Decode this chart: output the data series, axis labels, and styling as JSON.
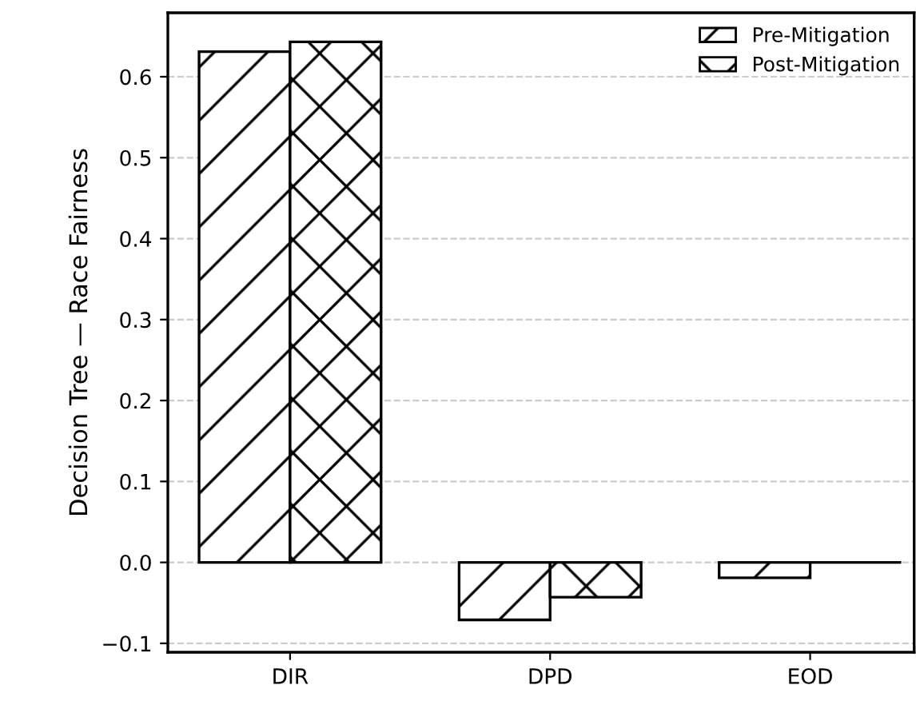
{
  "chart_data": {
    "type": "bar",
    "ylabel": "Decision Tree — Race Fairness",
    "categories": [
      "DIR",
      "DPD",
      "EOD"
    ],
    "series": [
      {
        "name": "Pre-Mitigation",
        "color": "#000000",
        "values": [
          0.631,
          -0.071,
          -0.019
        ]
      },
      {
        "name": "Post-Mitigation",
        "color": "#000000",
        "values": [
          0.643,
          -0.043,
          0.0
        ]
      }
    ],
    "ylim": [
      -0.111,
      0.679
    ],
    "yticks": [
      {
        "value": -0.1,
        "label": "−0.1"
      },
      {
        "value": 0.0,
        "label": "0.0"
      },
      {
        "value": 0.1,
        "label": "0.1"
      },
      {
        "value": 0.2,
        "label": "0.2"
      },
      {
        "value": 0.3,
        "label": "0.3"
      },
      {
        "value": 0.4,
        "label": "0.4"
      },
      {
        "value": 0.5,
        "label": "0.5"
      },
      {
        "value": 0.6,
        "label": "0.6"
      }
    ],
    "grid": "y",
    "legend": "top right"
  }
}
